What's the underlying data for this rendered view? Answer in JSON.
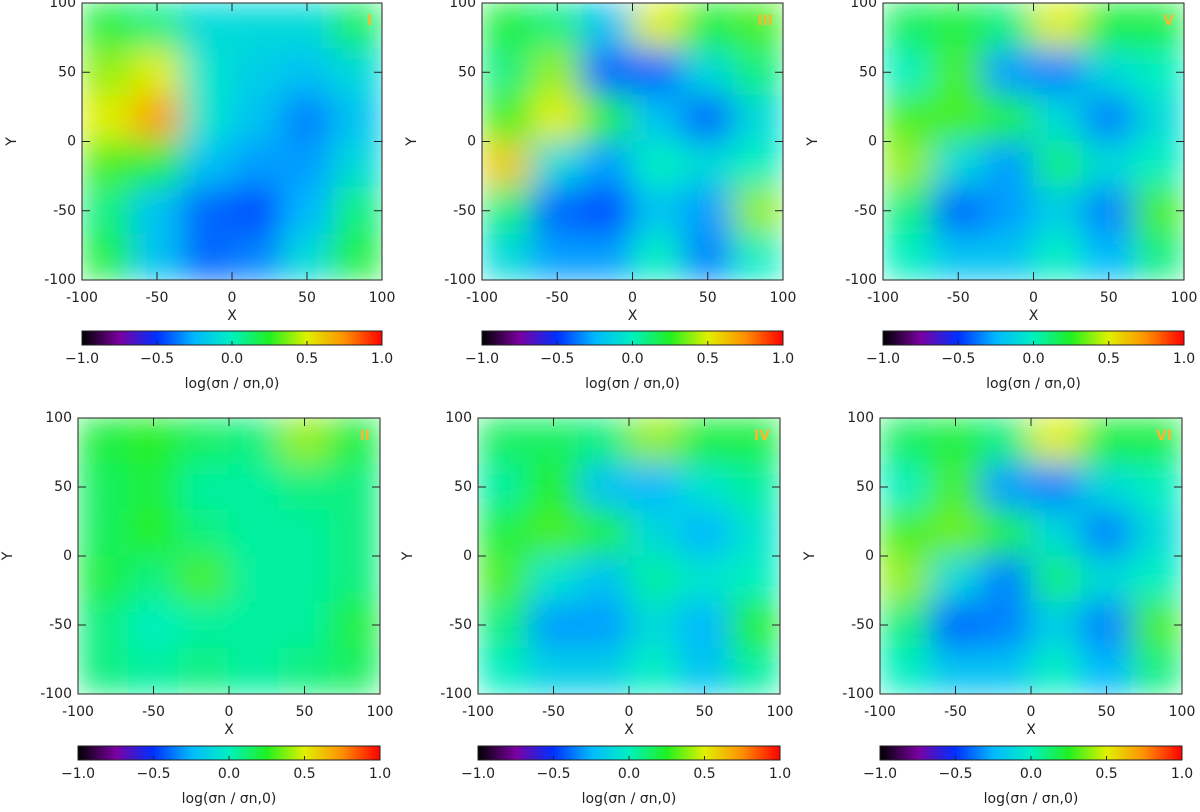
{
  "chart_data": [
    {
      "type": "heatmap",
      "title": "I",
      "x_label": "X",
      "y_label": "Y",
      "xlim": [
        -100,
        100
      ],
      "ylim": [
        -100,
        100
      ],
      "xticks": [
        -100,
        -50,
        0,
        50,
        100
      ],
      "yticks": [
        -100,
        -50,
        0,
        50,
        100
      ],
      "zlim": [
        -1,
        1
      ],
      "colorscale": [
        "#000000",
        "#7a00a0",
        "#0030ff",
        "#00b8ff",
        "#00f0c0",
        "#20f020",
        "#e0f000",
        "#ff9000",
        "#ff0000"
      ],
      "label_color": "#f5b830",
      "z": [
        [
          0.2,
          0.1,
          -0.1,
          -0.1,
          -0.1,
          0.15
        ],
        [
          0.4,
          0.5,
          -0.05,
          -0.15,
          -0.2,
          -0.1
        ],
        [
          0.5,
          0.7,
          -0.05,
          -0.2,
          -0.35,
          -0.2
        ],
        [
          0.3,
          0.2,
          -0.2,
          -0.3,
          -0.3,
          -0.1
        ],
        [
          0.1,
          -0.2,
          -0.4,
          -0.45,
          -0.25,
          0.1
        ],
        [
          0.2,
          -0.2,
          -0.4,
          -0.35,
          -0.1,
          0.2
        ]
      ],
      "colorbar_label": "log(σn / σn,0)",
      "colorbar_ticks": [
        {
          "value": -1,
          "label": "−1.0"
        },
        {
          "value": -0.5,
          "label": "−0.5"
        },
        {
          "value": 0,
          "label": "0.0"
        },
        {
          "value": 0.5,
          "label": "0.5"
        },
        {
          "value": 1,
          "label": "1.0"
        }
      ]
    },
    {
      "type": "heatmap",
      "title": "III",
      "x_label": "X",
      "y_label": "Y",
      "xlim": [
        -100,
        100
      ],
      "ylim": [
        -100,
        100
      ],
      "xticks": [
        -100,
        -50,
        0,
        50,
        100
      ],
      "yticks": [
        -100,
        -50,
        0,
        50,
        100
      ],
      "zlim": [
        -1,
        1
      ],
      "colorscale": [
        "#000000",
        "#7a00a0",
        "#0030ff",
        "#00b8ff",
        "#00f0c0",
        "#20f020",
        "#e0f000",
        "#ff9000",
        "#ff0000"
      ],
      "label_color": "#f5b830",
      "z": [
        [
          0.2,
          0.1,
          -0.2,
          0.5,
          0.2,
          0.3
        ],
        [
          0.1,
          0.4,
          -0.4,
          -0.4,
          -0.1,
          0.1
        ],
        [
          0.3,
          0.5,
          0.2,
          -0.2,
          -0.4,
          -0.1
        ],
        [
          0.6,
          -0.1,
          -0.3,
          0.0,
          -0.1,
          0.0
        ],
        [
          0.1,
          -0.4,
          -0.45,
          -0.2,
          -0.3,
          0.4
        ],
        [
          -0.1,
          -0.3,
          -0.3,
          0.0,
          -0.35,
          0.0
        ]
      ],
      "colorbar_label": "log(σn / σn,0)",
      "colorbar_ticks": [
        {
          "value": -1,
          "label": "−1.0"
        },
        {
          "value": -0.5,
          "label": "−0.5"
        },
        {
          "value": 0,
          "label": "0.0"
        },
        {
          "value": 0.5,
          "label": "0.5"
        },
        {
          "value": 1,
          "label": "1.0"
        }
      ]
    },
    {
      "type": "heatmap",
      "title": "V",
      "x_label": "X",
      "y_label": "Y",
      "xlim": [
        -100,
        100
      ],
      "ylim": [
        -100,
        100
      ],
      "xticks": [
        -100,
        -50,
        0,
        50,
        100
      ],
      "yticks": [
        -100,
        -50,
        0,
        50,
        100
      ],
      "zlim": [
        -1,
        1
      ],
      "colorscale": [
        "#000000",
        "#7a00a0",
        "#0030ff",
        "#00b8ff",
        "#00f0c0",
        "#20f020",
        "#e0f000",
        "#ff9000",
        "#ff0000"
      ],
      "label_color": "#f5b830",
      "z": [
        [
          0.15,
          0.2,
          0.1,
          0.5,
          0.2,
          0.2
        ],
        [
          0.0,
          0.3,
          -0.3,
          -0.35,
          -0.1,
          0.0
        ],
        [
          0.3,
          0.3,
          0.2,
          -0.1,
          -0.35,
          -0.1
        ],
        [
          0.4,
          -0.1,
          -0.3,
          0.1,
          -0.1,
          0.0
        ],
        [
          0.1,
          -0.4,
          -0.3,
          -0.15,
          -0.35,
          0.3
        ],
        [
          0.0,
          -0.2,
          -0.2,
          0.0,
          -0.25,
          0.1
        ]
      ],
      "colorbar_label": "log(σn / σn,0)",
      "colorbar_ticks": [
        {
          "value": -1,
          "label": "−1.0"
        },
        {
          "value": -0.5,
          "label": "−0.5"
        },
        {
          "value": 0,
          "label": "0.0"
        },
        {
          "value": 0.5,
          "label": "0.5"
        },
        {
          "value": 1,
          "label": "1.0"
        }
      ]
    },
    {
      "type": "heatmap",
      "title": "II",
      "x_label": "X",
      "y_label": "Y",
      "xlim": [
        -100,
        100
      ],
      "ylim": [
        -100,
        100
      ],
      "xticks": [
        -100,
        -50,
        0,
        50,
        100
      ],
      "yticks": [
        -100,
        -50,
        0,
        50,
        100
      ],
      "zlim": [
        -1,
        1
      ],
      "colorscale": [
        "#000000",
        "#7a00a0",
        "#0030ff",
        "#00b8ff",
        "#00f0c0",
        "#20f020",
        "#e0f000",
        "#ff9000",
        "#ff0000"
      ],
      "label_color": "#f5b830",
      "z": [
        [
          0.2,
          0.25,
          0.15,
          0.1,
          0.4,
          0.2
        ],
        [
          0.15,
          0.2,
          0.05,
          0.05,
          0.1,
          0.1
        ],
        [
          0.15,
          0.25,
          0.1,
          0.05,
          0.05,
          0.1
        ],
        [
          0.2,
          0.1,
          0.3,
          0.05,
          0.05,
          0.1
        ],
        [
          0.1,
          0.0,
          0.05,
          0.05,
          0.05,
          0.2
        ],
        [
          0.1,
          0.05,
          0.1,
          0.05,
          0.1,
          0.15
        ]
      ],
      "colorbar_label": "log(σn / σn,0)",
      "colorbar_ticks": [
        {
          "value": -1,
          "label": "−1.0"
        },
        {
          "value": -0.5,
          "label": "−0.5"
        },
        {
          "value": 0,
          "label": "0.0"
        },
        {
          "value": 0.5,
          "label": "0.5"
        },
        {
          "value": 1,
          "label": "1.0"
        }
      ]
    },
    {
      "type": "heatmap",
      "title": "IV",
      "x_label": "X",
      "y_label": "Y",
      "xlim": [
        -100,
        100
      ],
      "ylim": [
        -100,
        100
      ],
      "xticks": [
        -100,
        -50,
        0,
        50,
        100
      ],
      "yticks": [
        -100,
        -50,
        0,
        50,
        100
      ],
      "zlim": [
        -1,
        1
      ],
      "colorscale": [
        "#000000",
        "#7a00a0",
        "#0030ff",
        "#00b8ff",
        "#00f0c0",
        "#20f020",
        "#e0f000",
        "#ff9000",
        "#ff0000"
      ],
      "label_color": "#f5b830",
      "z": [
        [
          0.15,
          0.15,
          0.1,
          0.4,
          0.2,
          0.2
        ],
        [
          0.05,
          0.25,
          -0.2,
          -0.25,
          -0.05,
          0.05
        ],
        [
          0.2,
          0.3,
          0.2,
          -0.1,
          -0.25,
          -0.05
        ],
        [
          0.3,
          -0.05,
          -0.2,
          0.05,
          -0.05,
          0.0
        ],
        [
          0.1,
          -0.3,
          -0.3,
          -0.1,
          -0.25,
          0.25
        ],
        [
          0.0,
          -0.15,
          -0.15,
          0.0,
          -0.2,
          0.05
        ]
      ],
      "colorbar_label": "log(σn / σn,0)",
      "colorbar_ticks": [
        {
          "value": -1,
          "label": "−1.0"
        },
        {
          "value": -0.5,
          "label": "−0.5"
        },
        {
          "value": 0,
          "label": "0.0"
        },
        {
          "value": 0.5,
          "label": "0.5"
        },
        {
          "value": 1,
          "label": "1.0"
        }
      ]
    },
    {
      "type": "heatmap",
      "title": "VI",
      "x_label": "X",
      "y_label": "Y",
      "xlim": [
        -100,
        100
      ],
      "ylim": [
        -100,
        100
      ],
      "xticks": [
        -100,
        -50,
        0,
        50,
        100
      ],
      "yticks": [
        -100,
        -50,
        0,
        50,
        100
      ],
      "zlim": [
        -1,
        1
      ],
      "colorscale": [
        "#000000",
        "#7a00a0",
        "#0030ff",
        "#00b8ff",
        "#00f0c0",
        "#20f020",
        "#e0f000",
        "#ff9000",
        "#ff0000"
      ],
      "label_color": "#f5b830",
      "z": [
        [
          0.15,
          0.2,
          0.1,
          0.5,
          0.2,
          0.2
        ],
        [
          0.0,
          0.3,
          -0.3,
          -0.35,
          -0.1,
          0.0
        ],
        [
          0.3,
          0.35,
          0.2,
          -0.1,
          -0.35,
          -0.1
        ],
        [
          0.4,
          -0.1,
          -0.35,
          0.1,
          -0.1,
          0.0
        ],
        [
          0.1,
          -0.4,
          -0.35,
          -0.15,
          -0.35,
          0.3
        ],
        [
          0.0,
          -0.2,
          -0.2,
          0.0,
          -0.25,
          0.1
        ]
      ],
      "colorbar_label": "log(σn / σn,0)",
      "colorbar_ticks": [
        {
          "value": -1,
          "label": "−1.0"
        },
        {
          "value": -0.5,
          "label": "−0.5"
        },
        {
          "value": 0,
          "label": "0.0"
        },
        {
          "value": 0.5,
          "label": "0.5"
        },
        {
          "value": 1,
          "label": "1.0"
        }
      ]
    }
  ]
}
